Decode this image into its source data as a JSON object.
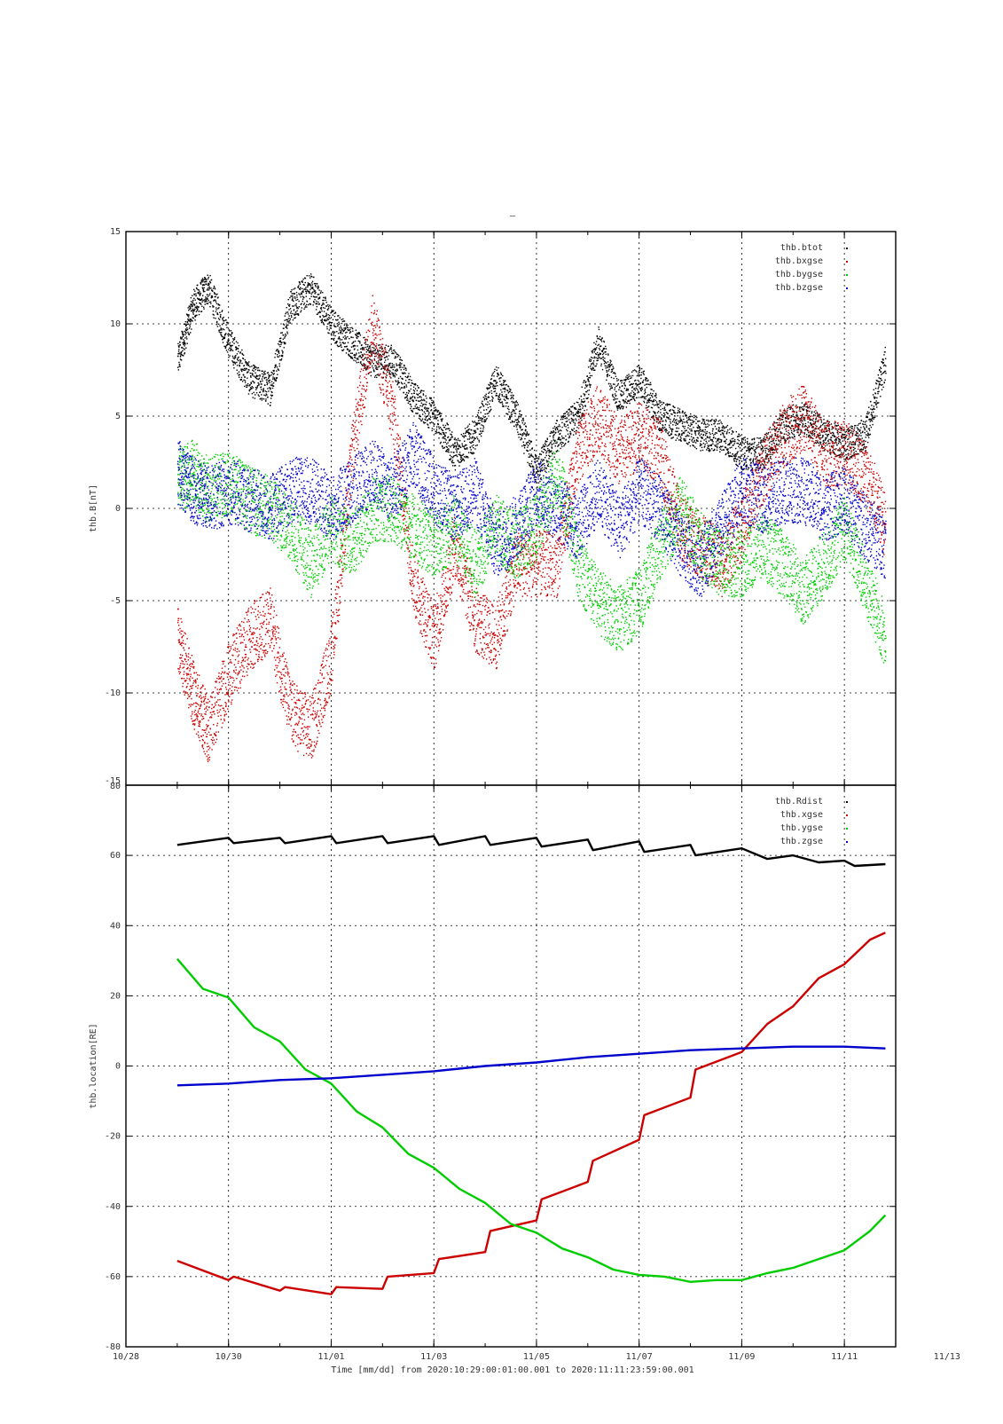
{
  "page": {
    "title_marker": "–"
  },
  "x_axis": {
    "label": "Time [mm/dd]  from 2020:10:29:00:01:00.001  to  2020:11:11:23:59:00.001",
    "range_days": [
      0,
      15
    ],
    "ticks": [
      {
        "day": 0,
        "label": "10/28"
      },
      {
        "day": 2,
        "label": "10/30"
      },
      {
        "day": 4,
        "label": "11/01"
      },
      {
        "day": 6,
        "label": "11/03"
      },
      {
        "day": 8,
        "label": "11/05"
      },
      {
        "day": 10,
        "label": "11/07"
      },
      {
        "day": 12,
        "label": "11/09"
      },
      {
        "day": 14,
        "label": "11/11"
      },
      {
        "day": 16,
        "label": "11/13"
      }
    ]
  },
  "chart_data": [
    {
      "type": "scatter",
      "title": "",
      "ylabel": "thb.B[nT]",
      "ylim": [
        -15,
        15
      ],
      "yticks": [
        -15,
        -10,
        -5,
        0,
        5,
        10,
        15
      ],
      "grid": true,
      "legend_position": "top-right",
      "series": [
        {
          "name": "thb.btot",
          "color": "#000000",
          "x": [
            1.0,
            1.3,
            1.6,
            2.0,
            2.4,
            2.8,
            3.2,
            3.6,
            4.0,
            4.4,
            4.8,
            5.2,
            5.6,
            6.0,
            6.4,
            6.8,
            7.2,
            7.6,
            8.0,
            8.4,
            8.8,
            9.2,
            9.6,
            10.0,
            10.4,
            10.8,
            11.2,
            11.6,
            12.0,
            12.4,
            12.8,
            13.2,
            13.6,
            14.0,
            14.4,
            14.8
          ],
          "y": [
            8,
            11,
            12,
            9,
            7,
            6.5,
            11,
            12,
            10,
            9,
            8,
            8,
            6,
            5,
            3,
            4,
            7,
            5,
            2,
            4,
            5,
            9,
            6,
            7,
            5,
            4.5,
            4,
            4,
            3,
            3,
            4.5,
            5,
            4,
            3.5,
            4,
            8
          ]
        },
        {
          "name": "thb.bxgse",
          "color": "#cc0000",
          "x": [
            1.0,
            1.3,
            1.6,
            2.0,
            2.4,
            2.8,
            3.2,
            3.6,
            4.0,
            4.4,
            4.8,
            5.2,
            5.6,
            6.0,
            6.4,
            6.8,
            7.2,
            7.6,
            8.0,
            8.4,
            8.8,
            9.2,
            9.6,
            10.0,
            10.4,
            10.8,
            11.2,
            11.6,
            12.0,
            12.4,
            12.8,
            13.2,
            13.6,
            14.0,
            14.4,
            14.8
          ],
          "y": [
            -7,
            -10,
            -12,
            -9,
            -7,
            -6,
            -11,
            -12,
            -8,
            3,
            10,
            5,
            -4,
            -7,
            -2,
            -6,
            -7,
            -3,
            -3,
            -3,
            3,
            5,
            3,
            4,
            3,
            -1,
            -2,
            -3,
            -1,
            2,
            4,
            5,
            3,
            3,
            2,
            -1
          ]
        },
        {
          "name": "thb.bygse",
          "color": "#00cc00",
          "x": [
            1.0,
            1.3,
            1.6,
            2.0,
            2.4,
            2.8,
            3.2,
            3.6,
            4.0,
            4.4,
            4.8,
            5.2,
            5.6,
            6.0,
            6.4,
            6.8,
            7.2,
            7.6,
            8.0,
            8.4,
            8.8,
            9.2,
            9.6,
            10.0,
            10.4,
            10.8,
            11.2,
            11.6,
            12.0,
            12.4,
            12.8,
            13.2,
            13.6,
            14.0,
            14.4,
            14.8
          ],
          "y": [
            1.5,
            2,
            1,
            1.5,
            0.5,
            0,
            -1,
            -3,
            -1,
            -2,
            0,
            0,
            -1,
            -2,
            -1,
            -3,
            -1,
            -2,
            -1,
            2,
            -3,
            -5,
            -6,
            -5,
            -2,
            0,
            -2,
            -3,
            -3,
            -2,
            -3,
            -4.5,
            -3,
            -1,
            -4,
            -7
          ]
        },
        {
          "name": "thb.bzgse",
          "color": "#0000cc",
          "x": [
            1.0,
            1.3,
            1.6,
            2.0,
            2.4,
            2.8,
            3.2,
            3.6,
            4.0,
            4.4,
            4.8,
            5.2,
            5.6,
            6.0,
            6.4,
            6.8,
            7.2,
            7.6,
            8.0,
            8.4,
            8.8,
            9.2,
            9.6,
            10.0,
            10.4,
            10.8,
            11.2,
            11.6,
            12.0,
            12.4,
            12.8,
            13.2,
            13.6,
            14.0,
            14.4,
            14.8
          ],
          "y": [
            2,
            1,
            0.5,
            1,
            0.5,
            0,
            1,
            1,
            0,
            1,
            2,
            1,
            3,
            1,
            0,
            1,
            -2,
            -1,
            1,
            0,
            -1,
            1,
            -1,
            1,
            0,
            -2,
            -3,
            -1,
            1,
            0.5,
            1,
            1,
            0,
            0.5,
            -1,
            -2
          ]
        }
      ]
    },
    {
      "type": "line",
      "title": "",
      "ylabel": "thb.location[RE]",
      "ylim": [
        -80,
        80
      ],
      "yticks": [
        -80,
        -60,
        -40,
        -20,
        0,
        20,
        40,
        60,
        80
      ],
      "grid": true,
      "legend_position": "top-right",
      "series": [
        {
          "name": "thb.Rdist",
          "color": "#000000",
          "x": [
            1.0,
            1.5,
            2.0,
            2.1,
            3.0,
            3.1,
            4.0,
            4.1,
            5.0,
            5.1,
            6.0,
            6.1,
            7.0,
            7.1,
            8.0,
            8.1,
            9.0,
            9.1,
            10.0,
            10.1,
            11.0,
            11.1,
            12.0,
            12.5,
            13.0,
            13.5,
            14.0,
            14.2,
            14.8
          ],
          "y": [
            63,
            64,
            65,
            63.5,
            65,
            63.5,
            65.5,
            63.5,
            65.5,
            63.5,
            65.5,
            63,
            65.5,
            63,
            65,
            62.5,
            64.5,
            61.5,
            64,
            61,
            63,
            60,
            62,
            59,
            60,
            58,
            58.5,
            57,
            57.5
          ]
        },
        {
          "name": "thb.xgse",
          "color": "#cc0000",
          "x": [
            1.0,
            2.0,
            2.1,
            3.0,
            3.1,
            4.0,
            4.1,
            5.0,
            5.1,
            6.0,
            6.1,
            7.0,
            7.1,
            8.0,
            8.1,
            9.0,
            9.1,
            10.0,
            10.1,
            11.0,
            11.1,
            12.0,
            12.5,
            13.0,
            13.5,
            14.0,
            14.5,
            14.8
          ],
          "y": [
            -55.5,
            -61,
            -60,
            -64,
            -63,
            -65,
            -63,
            -63.5,
            -60,
            -59,
            -55,
            -53,
            -47,
            -44,
            -38,
            -33,
            -27,
            -21,
            -14,
            -9,
            -1,
            4,
            12,
            17,
            25,
            29,
            36,
            38
          ]
        },
        {
          "name": "thb.ygse",
          "color": "#00cc00",
          "x": [
            1.0,
            1.5,
            2.0,
            2.5,
            3.0,
            3.5,
            4.0,
            4.5,
            5.0,
            5.5,
            6.0,
            6.5,
            7.0,
            7.5,
            8.0,
            8.5,
            9.0,
            9.5,
            10.0,
            10.5,
            11.0,
            11.5,
            12.0,
            12.5,
            13.0,
            13.5,
            14.0,
            14.5,
            14.8
          ],
          "y": [
            30.5,
            22,
            19.5,
            11,
            7,
            -1,
            -5,
            -13,
            -17.5,
            -25,
            -29,
            -35,
            -39,
            -45,
            -47.5,
            -52,
            -54.5,
            -58,
            -59.5,
            -60,
            -61.5,
            -61,
            -61,
            -59,
            -57.5,
            -55,
            -52.5,
            -47,
            -42.5
          ]
        },
        {
          "name": "thb.zgse",
          "color": "#0000cc",
          "x": [
            1.0,
            2.0,
            3.0,
            4.0,
            5.0,
            6.0,
            7.0,
            8.0,
            9.0,
            10.0,
            11.0,
            12.0,
            13.0,
            14.0,
            14.8
          ],
          "y": [
            -5.5,
            -5,
            -4,
            -3.5,
            -2.5,
            -1.5,
            0,
            1,
            2.5,
            3.5,
            4.5,
            5,
            5.5,
            5.5,
            5
          ]
        }
      ]
    }
  ]
}
